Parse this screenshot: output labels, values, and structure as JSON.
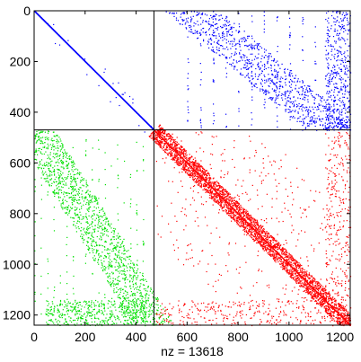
{
  "chart_data": {
    "type": "scatter",
    "subtype": "sparsity-pattern (spy plot)",
    "title": "",
    "xlabel": "nz = 13618",
    "ylabel": "",
    "nz": 13618,
    "matrix_size": [
      1240,
      1240
    ],
    "xlim": [
      0,
      1240
    ],
    "ylim": [
      1240,
      0
    ],
    "y_axis_inverted": true,
    "grid": false,
    "legend": "none",
    "x_ticks": [
      0,
      200,
      400,
      600,
      800,
      1000,
      1200
    ],
    "y_ticks": [
      0,
      200,
      400,
      600,
      800,
      1000,
      1200
    ],
    "block_boundary": 470,
    "series": [
      {
        "block": "top-left (1,1)",
        "color": "#0000ff",
        "rows": [
          0,
          470
        ],
        "cols": [
          0,
          470
        ],
        "pattern": "main diagonal band with very sparse off-diagonal points"
      },
      {
        "block": "top-right (1,2)",
        "color": "#0000ff",
        "rows": [
          0,
          470
        ],
        "cols": [
          470,
          1240
        ],
        "pattern": "sparse columns descending from top-left to bottom-right of block, dense patch near cols 1140-1240"
      },
      {
        "block": "bottom-left (2,1)",
        "color": "#00e000",
        "rows": [
          470,
          1240
        ],
        "cols": [
          0,
          470
        ],
        "pattern": "band descending from upper-left to lower-right, dense cluster near rows 1140-1240"
      },
      {
        "block": "bottom-right (2,2)",
        "color": "#ff0000",
        "rows": [
          470,
          1240
        ],
        "cols": [
          470,
          1240
        ],
        "pattern": "dense diagonal band with blocky off-diagonal clusters"
      }
    ]
  }
}
